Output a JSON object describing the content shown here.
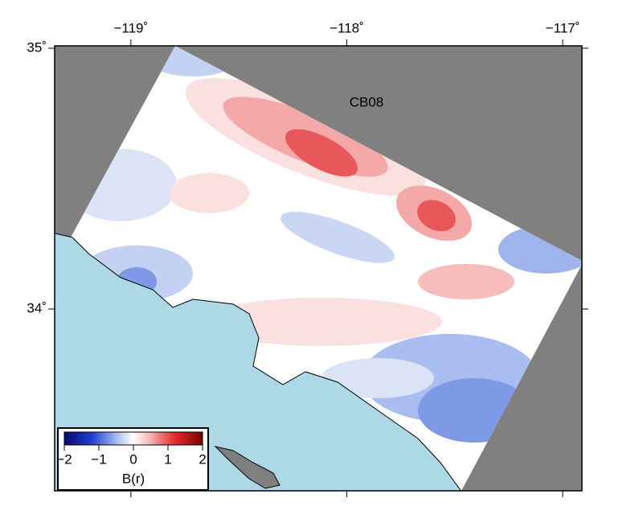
{
  "map": {
    "label": "CB08",
    "lonlim": [
      -119.353,
      -116.911
    ],
    "latlim": [
      33.303,
      35.009
    ],
    "lon_ticks": [
      {
        "value": -119,
        "label": "−119˚"
      },
      {
        "value": -118,
        "label": "−118˚"
      },
      {
        "value": -117,
        "label": "−117˚"
      }
    ],
    "lat_ticks": [
      {
        "value": 35,
        "label": "35˚"
      },
      {
        "value": 34,
        "label": "34˚"
      }
    ],
    "colorbar": {
      "label": "B(r)",
      "lim": [
        -2,
        2
      ],
      "ticks": [
        {
          "value": -2,
          "label": "−2"
        },
        {
          "value": -1,
          "label": "−1"
        },
        0,
        1,
        2
      ]
    }
  }
}
